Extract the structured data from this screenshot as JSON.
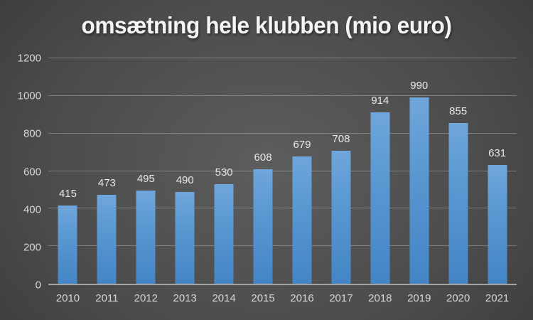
{
  "title": "omsætning hele klubben (mio euro)",
  "colors": {
    "bar_top": "#6fa6dc",
    "bar_bottom": "#4485c6",
    "background_center": "#5d5d5d",
    "background_corner": "#272727",
    "gridline": "rgba(255,255,255,0.28)",
    "axis_line": "#a3a3a3",
    "title_text": "#f5f5f5",
    "label_text": "#d6d6d6",
    "value_text": "#e9e9e9"
  },
  "chart_data": {
    "type": "bar",
    "title": "omsætning hele klubben (mio euro)",
    "categories": [
      "2010",
      "2011",
      "2012",
      "2013",
      "2014",
      "2015",
      "2016",
      "2017",
      "2018",
      "2019",
      "2020",
      "2021"
    ],
    "values": [
      415,
      473,
      495,
      490,
      530,
      608,
      679,
      708,
      914,
      990,
      855,
      631
    ],
    "xlabel": "",
    "ylabel": "",
    "ylim": [
      0,
      1200
    ],
    "yticks": [
      0,
      200,
      400,
      600,
      800,
      1000,
      1200
    ],
    "grid": "horizontal",
    "legend": "none",
    "data_labels": "above-bars"
  }
}
